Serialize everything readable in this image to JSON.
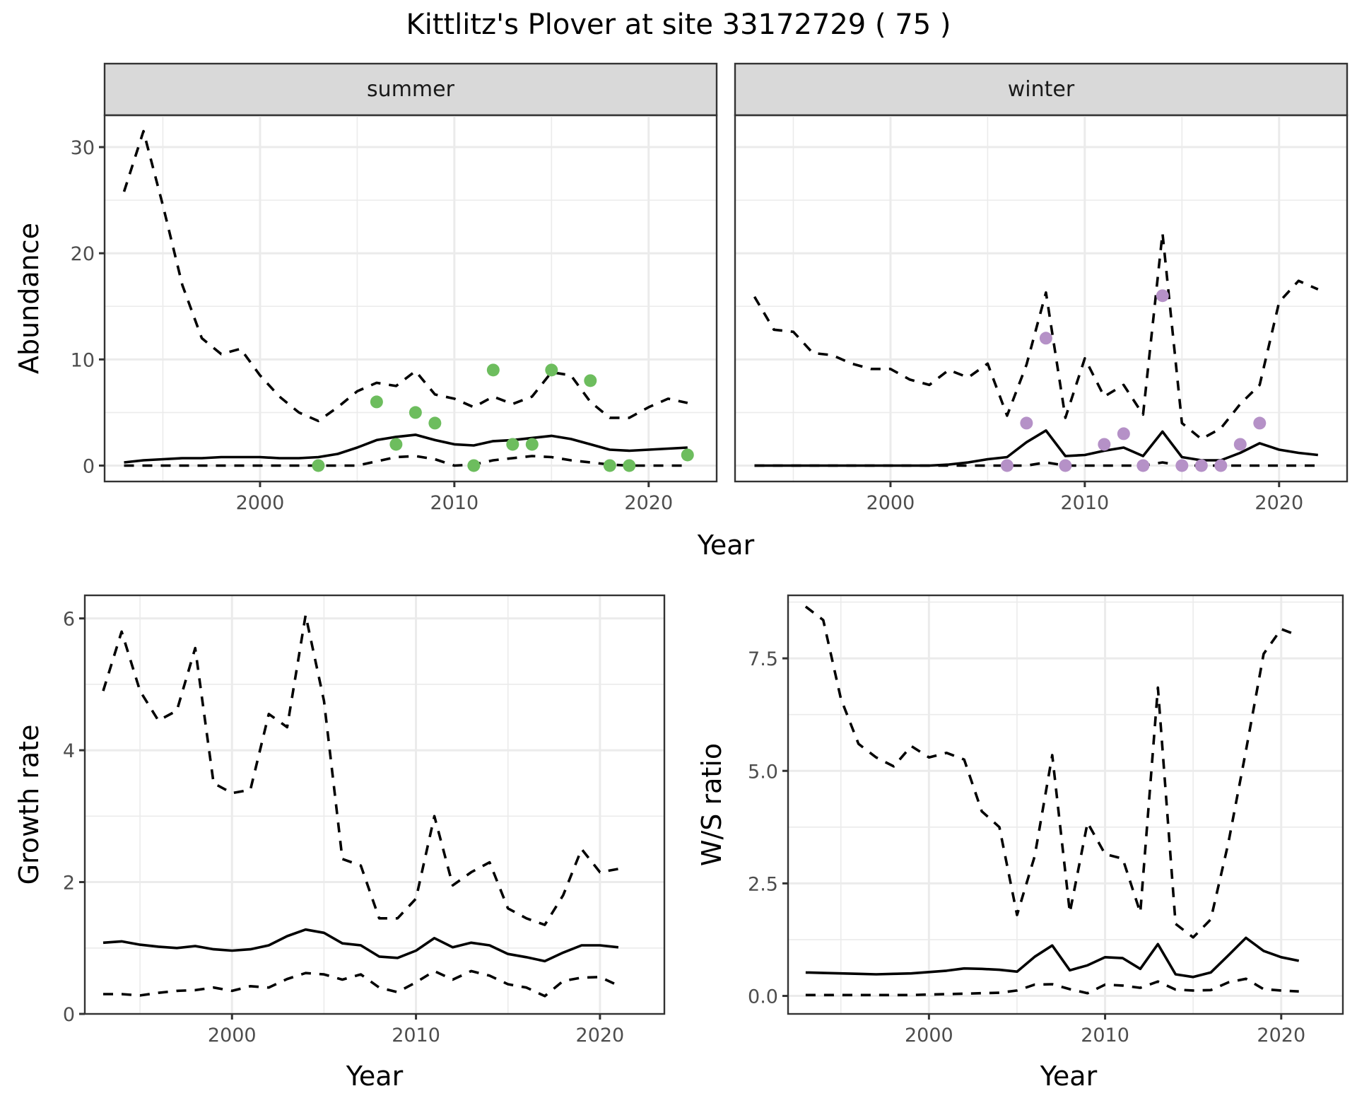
{
  "figure": {
    "title": "Kittlitz's Plover at site 33172729 ( 75 )"
  },
  "colors": {
    "summer_points": "#6dbd5e",
    "winter_points": "#b591c7",
    "lines": "#000000",
    "strip_background": "#d9d9d9",
    "grid": "#ebebeb"
  },
  "chart_data": [
    {
      "id": "abundance-summer",
      "type": "line",
      "facet_label": "summer",
      "title": "",
      "xlabel": "Year",
      "ylabel": "Abundance",
      "xlim": [
        1992,
        2023.5
      ],
      "ylim": [
        -1.5,
        33
      ],
      "xticks": [
        2000,
        2010,
        2020
      ],
      "yticks": [
        0,
        10,
        20,
        30
      ],
      "grid": true,
      "x": [
        1993,
        1994,
        1995,
        1996,
        1997,
        1998,
        1999,
        2000,
        2001,
        2002,
        2003,
        2004,
        2005,
        2006,
        2007,
        2008,
        2009,
        2010,
        2011,
        2012,
        2013,
        2014,
        2015,
        2016,
        2017,
        2018,
        2019,
        2020,
        2021,
        2022
      ],
      "series": [
        {
          "name": "upper",
          "style": "dashed",
          "values": [
            25.8,
            31.5,
            24.5,
            17.0,
            12.0,
            10.5,
            11.0,
            8.5,
            6.5,
            5.0,
            4.2,
            5.5,
            7.0,
            7.8,
            7.5,
            8.9,
            6.7,
            6.3,
            5.5,
            6.5,
            5.8,
            6.5,
            8.8,
            8.5,
            6.0,
            4.5,
            4.5,
            5.5,
            6.3,
            5.9
          ]
        },
        {
          "name": "mean",
          "style": "solid",
          "values": [
            0.3,
            0.5,
            0.6,
            0.7,
            0.7,
            0.8,
            0.8,
            0.8,
            0.7,
            0.7,
            0.8,
            1.1,
            1.7,
            2.4,
            2.7,
            2.9,
            2.4,
            2.0,
            1.9,
            2.3,
            2.4,
            2.6,
            2.8,
            2.5,
            2.0,
            1.5,
            1.4,
            1.5,
            1.6,
            1.7
          ]
        },
        {
          "name": "lower",
          "style": "dashed",
          "values": [
            0,
            0,
            0,
            0,
            0,
            0,
            0,
            0,
            0,
            0,
            0,
            0,
            0,
            0.4,
            0.8,
            0.9,
            0.6,
            0,
            0.1,
            0.5,
            0.7,
            0.9,
            0.8,
            0.5,
            0.3,
            0.1,
            0,
            0,
            0,
            0
          ]
        }
      ],
      "points": {
        "name": "observed",
        "x": [
          2003,
          2006,
          2007,
          2008,
          2009,
          2011,
          2012,
          2013,
          2014,
          2015,
          2017,
          2018,
          2019,
          2022
        ],
        "y": [
          0,
          6,
          2,
          5,
          4,
          0,
          9,
          2,
          2,
          9,
          8,
          0,
          0,
          1
        ]
      }
    },
    {
      "id": "abundance-winter",
      "type": "line",
      "facet_label": "winter",
      "title": "",
      "xlabel": "Year",
      "ylabel": "Abundance",
      "xlim": [
        1992,
        2023.5
      ],
      "ylim": [
        -1.5,
        33
      ],
      "xticks": [
        2000,
        2010,
        2020
      ],
      "yticks": [
        0,
        10,
        20,
        30
      ],
      "grid": true,
      "x": [
        1993,
        1994,
        1995,
        1996,
        1997,
        1998,
        1999,
        2000,
        2001,
        2002,
        2003,
        2004,
        2005,
        2006,
        2007,
        2008,
        2009,
        2010,
        2011,
        2012,
        2013,
        2014,
        2015,
        2016,
        2017,
        2018,
        2019,
        2020,
        2021,
        2022
      ],
      "series": [
        {
          "name": "upper",
          "style": "dashed",
          "values": [
            15.9,
            12.8,
            12.6,
            10.6,
            10.4,
            9.6,
            9.1,
            9.1,
            8.1,
            7.6,
            9.0,
            8.3,
            9.6,
            4.7,
            9.5,
            16.3,
            4.5,
            10.1,
            6.5,
            7.6,
            4.8,
            21.9,
            4.0,
            2.5,
            3.5,
            5.8,
            7.6,
            15.4,
            17.4,
            16.6
          ]
        },
        {
          "name": "mean",
          "style": "solid",
          "values": [
            0,
            0,
            0,
            0,
            0,
            0,
            0,
            0,
            0,
            0,
            0.1,
            0.3,
            0.6,
            0.8,
            2.2,
            3.3,
            0.9,
            1.0,
            1.4,
            1.7,
            0.9,
            3.2,
            0.8,
            0.5,
            0.5,
            1.2,
            2.1,
            1.5,
            1.2,
            1.0
          ]
        },
        {
          "name": "lower",
          "style": "dashed",
          "values": [
            0,
            0,
            0,
            0,
            0,
            0,
            0,
            0,
            0,
            0,
            0,
            0,
            0,
            0,
            0,
            0.3,
            0,
            0,
            0,
            0,
            0,
            0.3,
            0,
            0,
            0,
            0,
            0,
            0,
            0,
            0
          ]
        }
      ],
      "points": {
        "name": "observed",
        "x": [
          2006,
          2007,
          2008,
          2009,
          2011,
          2012,
          2013,
          2014,
          2015,
          2016,
          2017,
          2018,
          2019
        ],
        "y": [
          0,
          4,
          12,
          0,
          2,
          3,
          0,
          16,
          0,
          0,
          0,
          2,
          4
        ]
      }
    },
    {
      "id": "growth-rate",
      "type": "line",
      "title": "",
      "xlabel": "Year",
      "ylabel": "Growth rate",
      "xlim": [
        1992,
        2023.5
      ],
      "ylim": [
        0,
        6.35
      ],
      "xticks": [
        2000,
        2010,
        2020
      ],
      "yticks": [
        0,
        2,
        4,
        6
      ],
      "grid": true,
      "x": [
        1993,
        1994,
        1995,
        1996,
        1997,
        1998,
        1999,
        2000,
        2001,
        2002,
        2003,
        2004,
        2005,
        2006,
        2007,
        2008,
        2009,
        2010,
        2011,
        2012,
        2013,
        2014,
        2015,
        2016,
        2017,
        2018,
        2019,
        2020,
        2021
      ],
      "series": [
        {
          "name": "upper",
          "style": "dashed",
          "values": [
            4.9,
            5.8,
            4.9,
            4.45,
            4.6,
            5.55,
            3.5,
            3.35,
            3.4,
            4.55,
            4.35,
            6.05,
            4.75,
            2.35,
            2.25,
            1.45,
            1.45,
            1.75,
            3.0,
            1.95,
            2.15,
            2.3,
            1.6,
            1.45,
            1.35,
            1.8,
            2.5,
            2.15,
            2.2
          ]
        },
        {
          "name": "mean",
          "style": "solid",
          "values": [
            1.08,
            1.1,
            1.05,
            1.02,
            1.0,
            1.03,
            0.98,
            0.96,
            0.98,
            1.04,
            1.18,
            1.28,
            1.23,
            1.07,
            1.04,
            0.87,
            0.85,
            0.96,
            1.15,
            1.01,
            1.08,
            1.04,
            0.91,
            0.86,
            0.8,
            0.93,
            1.04,
            1.04,
            1.01
          ]
        },
        {
          "name": "lower",
          "style": "dashed",
          "values": [
            0.3,
            0.3,
            0.28,
            0.32,
            0.35,
            0.36,
            0.4,
            0.35,
            0.42,
            0.4,
            0.53,
            0.62,
            0.6,
            0.52,
            0.6,
            0.4,
            0.33,
            0.48,
            0.65,
            0.52,
            0.65,
            0.58,
            0.45,
            0.4,
            0.27,
            0.5,
            0.55,
            0.56,
            0.43
          ]
        }
      ]
    },
    {
      "id": "ws-ratio",
      "type": "line",
      "title": "",
      "xlabel": "Year",
      "ylabel": "W/S ratio",
      "xlim": [
        1992,
        2023.5
      ],
      "ylim": [
        -0.4,
        8.9
      ],
      "xticks": [
        2000,
        2010,
        2020
      ],
      "yticks": [
        0.0,
        2.5,
        5.0,
        7.5
      ],
      "ytick_labels": [
        "0.0",
        "2.5",
        "5.0",
        "7.5"
      ],
      "grid": true,
      "x": [
        1993,
        1994,
        1995,
        1996,
        1997,
        1998,
        1999,
        2000,
        2001,
        2002,
        2003,
        2004,
        2005,
        2006,
        2007,
        2008,
        2009,
        2010,
        2011,
        2012,
        2013,
        2014,
        2015,
        2016,
        2017,
        2018,
        2019,
        2020,
        2021
      ],
      "series": [
        {
          "name": "upper",
          "style": "dashed",
          "values": [
            8.65,
            8.35,
            6.6,
            5.6,
            5.3,
            5.1,
            5.55,
            5.3,
            5.4,
            5.25,
            4.1,
            3.75,
            1.8,
            3.1,
            5.35,
            1.85,
            3.85,
            3.15,
            3.05,
            1.85,
            6.85,
            1.6,
            1.3,
            1.7,
            3.4,
            5.45,
            7.6,
            8.15,
            8.0
          ]
        },
        {
          "name": "mean",
          "style": "solid",
          "values": [
            0.52,
            0.51,
            0.5,
            0.49,
            0.48,
            0.49,
            0.5,
            0.53,
            0.56,
            0.61,
            0.6,
            0.58,
            0.54,
            0.87,
            1.12,
            0.57,
            0.68,
            0.86,
            0.84,
            0.6,
            1.15,
            0.48,
            0.42,
            0.52,
            0.9,
            1.29,
            1.0,
            0.86,
            0.78
          ]
        },
        {
          "name": "lower",
          "style": "dashed",
          "values": [
            0.02,
            0.02,
            0.02,
            0.02,
            0.02,
            0.02,
            0.02,
            0.03,
            0.04,
            0.05,
            0.06,
            0.07,
            0.12,
            0.25,
            0.26,
            0.15,
            0.06,
            0.25,
            0.23,
            0.18,
            0.32,
            0.14,
            0.12,
            0.13,
            0.3,
            0.38,
            0.15,
            0.12,
            0.1
          ]
        }
      ]
    }
  ]
}
